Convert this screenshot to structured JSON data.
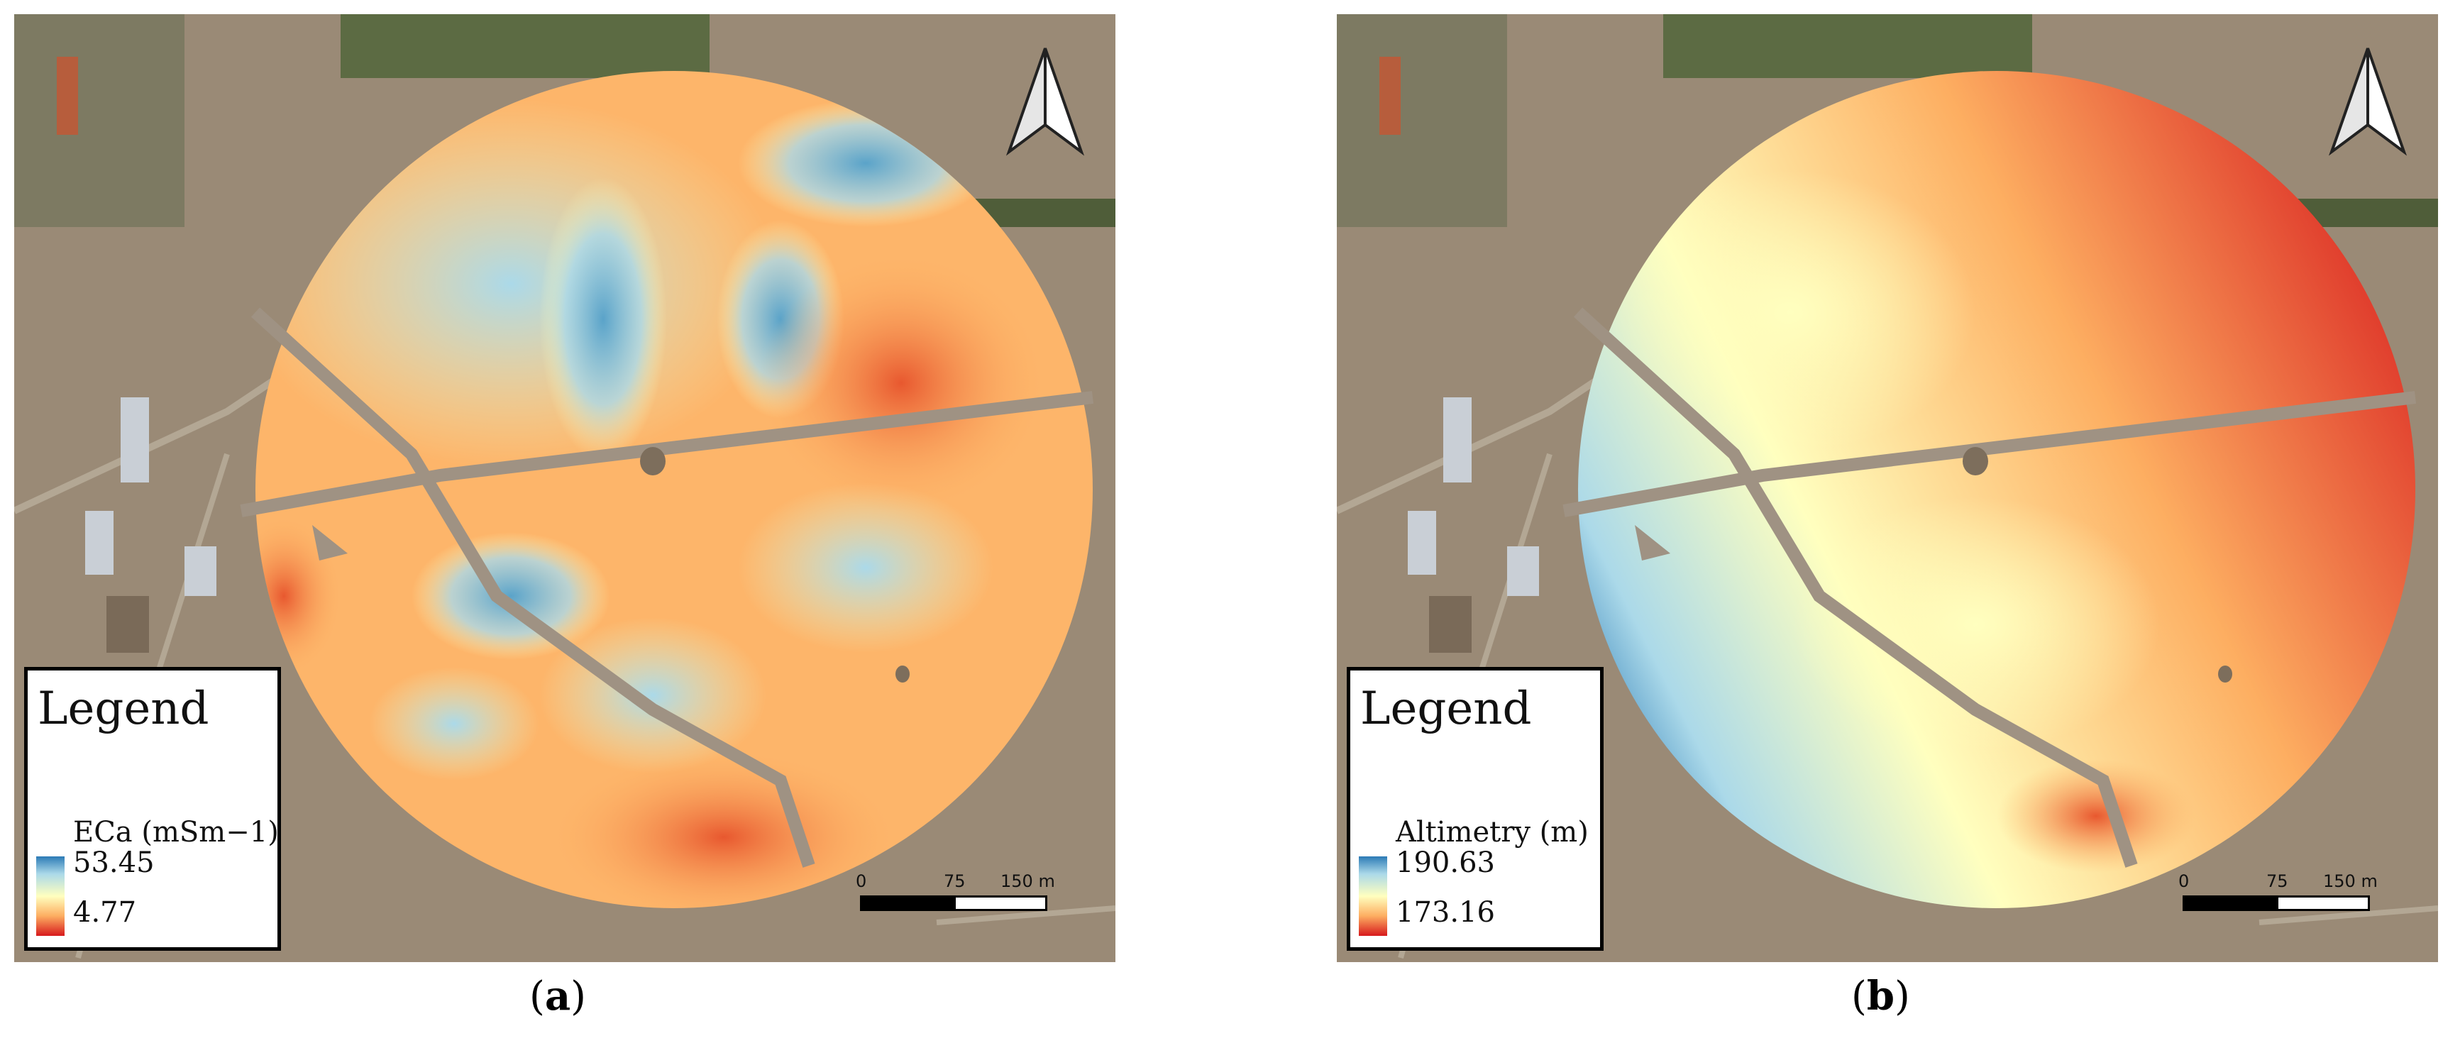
{
  "panels": [
    {
      "id": "a",
      "caption_letter": "a",
      "legend": {
        "title": "Legend",
        "field": "ECa (mSm−1)",
        "max": "53.45",
        "min": "4.77"
      },
      "color_ramp": [
        "#2c7bb6",
        "#abd9e9",
        "#ffffbf",
        "#fdae61",
        "#d7191c"
      ],
      "scalebar": {
        "labels": [
          "0",
          "75",
          "150 m"
        ]
      }
    },
    {
      "id": "b",
      "caption_letter": "b",
      "legend": {
        "title": "Legend",
        "field": "Altimetry (m)",
        "max": "190.63",
        "min": "173.16"
      },
      "color_ramp": [
        "#2c7bb6",
        "#abd9e9",
        "#ffffbf",
        "#fdae61",
        "#d7191c"
      ],
      "scalebar": {
        "labels": [
          "0",
          "75",
          "150 m"
        ]
      }
    }
  ],
  "colors": {
    "background_land": "#9a8a76",
    "field_road": "#9f9283",
    "legend_border": "#000000"
  }
}
